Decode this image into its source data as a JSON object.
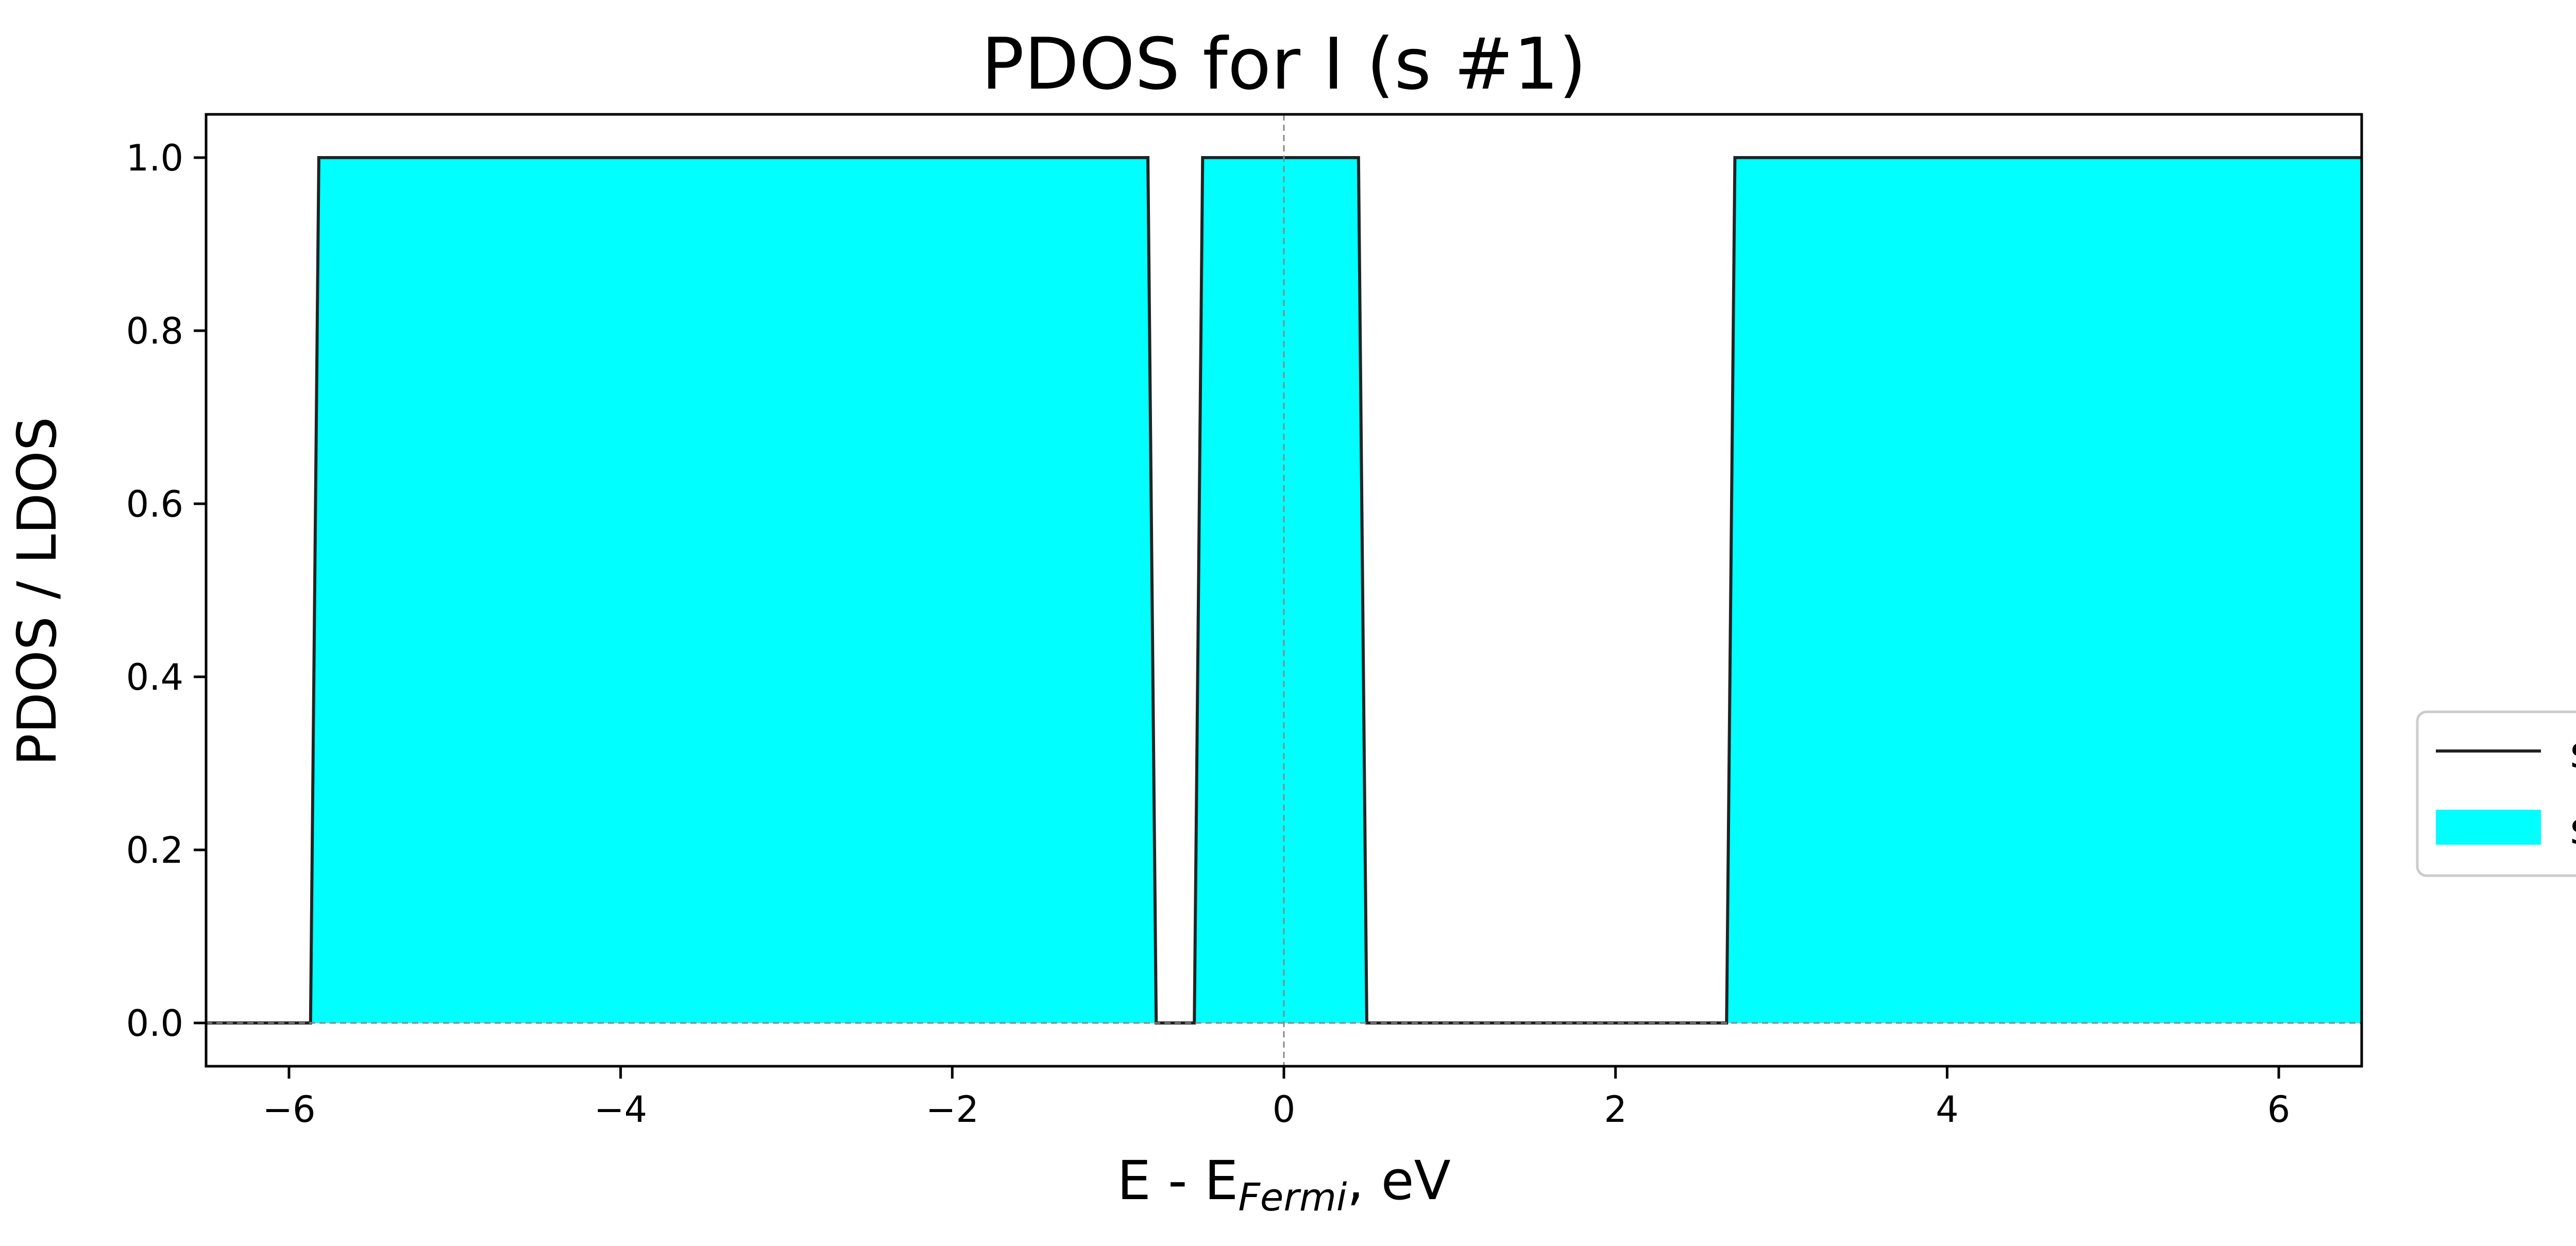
{
  "chart_data": {
    "type": "area",
    "title": "PDOS for I (s #1)",
    "xlabel": {
      "main": "E - E",
      "sub": "Fermi",
      "suffix": ", eV"
    },
    "ylabel": "PDOS / LDOS",
    "xlim": [
      -6.5,
      6.5
    ],
    "ylim": [
      -0.05,
      1.05
    ],
    "xticks": [
      -6,
      -4,
      -2,
      0,
      2,
      4,
      6
    ],
    "yticks": [
      0.0,
      0.2,
      0.4,
      0.6,
      0.8,
      1.0
    ],
    "grid": false,
    "fermi_line_x": 0,
    "zero_line_y": 0,
    "legend_position": "outside-right",
    "series": [
      {
        "name": "s",
        "style": "line",
        "color": "#222222",
        "x": [
          -6.5,
          -5.87,
          -5.82,
          -0.82,
          -0.77,
          -0.54,
          -0.49,
          0.45,
          0.5,
          2.67,
          2.72,
          6.5
        ],
        "y": [
          0,
          0,
          1,
          1,
          0,
          0,
          1,
          1,
          0,
          0,
          1,
          1
        ]
      },
      {
        "name": "s",
        "style": "fill",
        "color": "#00ffff",
        "x": [
          -6.5,
          -5.87,
          -5.82,
          -0.82,
          -0.77,
          -0.54,
          -0.49,
          0.45,
          0.5,
          2.67,
          2.72,
          6.5
        ],
        "y": [
          0,
          0,
          1,
          1,
          0,
          0,
          1,
          1,
          0,
          0,
          1,
          1
        ]
      }
    ]
  }
}
